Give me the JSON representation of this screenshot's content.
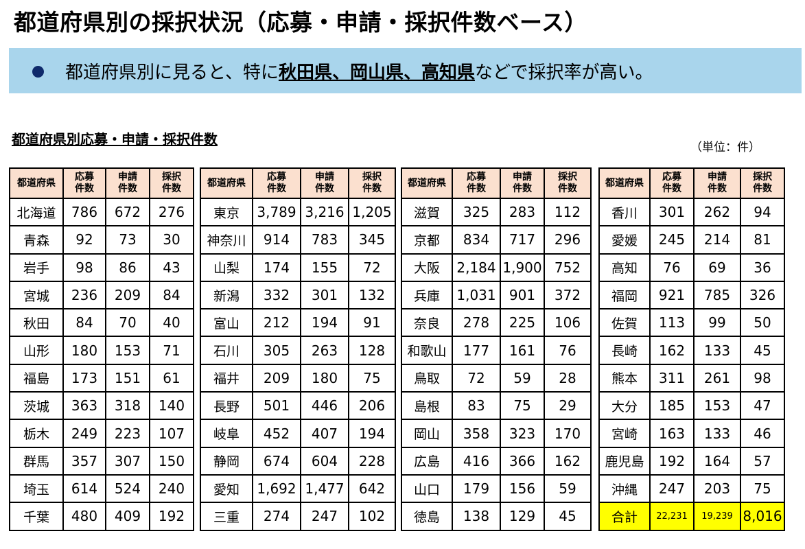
{
  "title": "都道府県別の採択状況（応募・申請・採択件数ベース）",
  "banner": {
    "prefix": "都道府県別に見ると、特に",
    "highlight": "秋田県、岡山県、高知県",
    "suffix": "などで採択率が高い。"
  },
  "subtitle": "都道府県別応募・申請・採択件数",
  "unit": "（単位：件）",
  "headers": {
    "pref": "都道府県",
    "apply_1": "応募",
    "apply_2": "件数",
    "request_1": "申請",
    "request_2": "件数",
    "adopt_1": "採択",
    "adopt_2": "件数"
  },
  "tables": [
    {
      "rows": [
        {
          "pref": "北海道",
          "apply": "786",
          "request": "672",
          "adopt": "276"
        },
        {
          "pref": "青森",
          "apply": "92",
          "request": "73",
          "adopt": "30"
        },
        {
          "pref": "岩手",
          "apply": "98",
          "request": "86",
          "adopt": "43"
        },
        {
          "pref": "宮城",
          "apply": "236",
          "request": "209",
          "adopt": "84"
        },
        {
          "pref": "秋田",
          "apply": "84",
          "request": "70",
          "adopt": "40"
        },
        {
          "pref": "山形",
          "apply": "180",
          "request": "153",
          "adopt": "71"
        },
        {
          "pref": "福島",
          "apply": "173",
          "request": "151",
          "adopt": "61"
        },
        {
          "pref": "茨城",
          "apply": "363",
          "request": "318",
          "adopt": "140"
        },
        {
          "pref": "栃木",
          "apply": "249",
          "request": "223",
          "adopt": "107"
        },
        {
          "pref": "群馬",
          "apply": "357",
          "request": "307",
          "adopt": "150"
        },
        {
          "pref": "埼玉",
          "apply": "614",
          "request": "524",
          "adopt": "240"
        },
        {
          "pref": "千葉",
          "apply": "480",
          "request": "409",
          "adopt": "192"
        }
      ]
    },
    {
      "rows": [
        {
          "pref": "東京",
          "apply": "3,789",
          "request": "3,216",
          "adopt": "1,205"
        },
        {
          "pref": "神奈川",
          "apply": "914",
          "request": "783",
          "adopt": "345"
        },
        {
          "pref": "山梨",
          "apply": "174",
          "request": "155",
          "adopt": "72"
        },
        {
          "pref": "新潟",
          "apply": "332",
          "request": "301",
          "adopt": "132"
        },
        {
          "pref": "富山",
          "apply": "212",
          "request": "194",
          "adopt": "91"
        },
        {
          "pref": "石川",
          "apply": "305",
          "request": "263",
          "adopt": "128"
        },
        {
          "pref": "福井",
          "apply": "209",
          "request": "180",
          "adopt": "75"
        },
        {
          "pref": "長野",
          "apply": "501",
          "request": "446",
          "adopt": "206"
        },
        {
          "pref": "岐阜",
          "apply": "452",
          "request": "407",
          "adopt": "194"
        },
        {
          "pref": "静岡",
          "apply": "674",
          "request": "604",
          "adopt": "228"
        },
        {
          "pref": "愛知",
          "apply": "1,692",
          "request": "1,477",
          "adopt": "642"
        },
        {
          "pref": "三重",
          "apply": "274",
          "request": "247",
          "adopt": "102"
        }
      ]
    },
    {
      "rows": [
        {
          "pref": "滋賀",
          "apply": "325",
          "request": "283",
          "adopt": "112"
        },
        {
          "pref": "京都",
          "apply": "834",
          "request": "717",
          "adopt": "296"
        },
        {
          "pref": "大阪",
          "apply": "2,184",
          "request": "1,900",
          "adopt": "752"
        },
        {
          "pref": "兵庫",
          "apply": "1,031",
          "request": "901",
          "adopt": "372"
        },
        {
          "pref": "奈良",
          "apply": "278",
          "request": "225",
          "adopt": "106"
        },
        {
          "pref": "和歌山",
          "apply": "177",
          "request": "161",
          "adopt": "76"
        },
        {
          "pref": "鳥取",
          "apply": "72",
          "request": "59",
          "adopt": "28"
        },
        {
          "pref": "島根",
          "apply": "83",
          "request": "75",
          "adopt": "29"
        },
        {
          "pref": "岡山",
          "apply": "358",
          "request": "323",
          "adopt": "170"
        },
        {
          "pref": "広島",
          "apply": "416",
          "request": "366",
          "adopt": "162"
        },
        {
          "pref": "山口",
          "apply": "179",
          "request": "156",
          "adopt": "59"
        },
        {
          "pref": "徳島",
          "apply": "138",
          "request": "129",
          "adopt": "45"
        }
      ]
    },
    {
      "rows": [
        {
          "pref": "香川",
          "apply": "301",
          "request": "262",
          "adopt": "94"
        },
        {
          "pref": "愛媛",
          "apply": "245",
          "request": "214",
          "adopt": "81"
        },
        {
          "pref": "高知",
          "apply": "76",
          "request": "69",
          "adopt": "36"
        },
        {
          "pref": "福岡",
          "apply": "921",
          "request": "785",
          "adopt": "326"
        },
        {
          "pref": "佐賀",
          "apply": "113",
          "request": "99",
          "adopt": "50"
        },
        {
          "pref": "長崎",
          "apply": "162",
          "request": "133",
          "adopt": "45"
        },
        {
          "pref": "熊本",
          "apply": "311",
          "request": "261",
          "adopt": "98"
        },
        {
          "pref": "大分",
          "apply": "185",
          "request": "153",
          "adopt": "47"
        },
        {
          "pref": "宮崎",
          "apply": "163",
          "request": "133",
          "adopt": "46"
        },
        {
          "pref": "鹿児島",
          "apply": "192",
          "request": "164",
          "adopt": "57"
        },
        {
          "pref": "沖縄",
          "apply": "247",
          "request": "203",
          "adopt": "75"
        }
      ],
      "total": {
        "pref": "合計",
        "apply": "22,231",
        "request": "19,239",
        "adopt": "8,016"
      }
    }
  ]
}
